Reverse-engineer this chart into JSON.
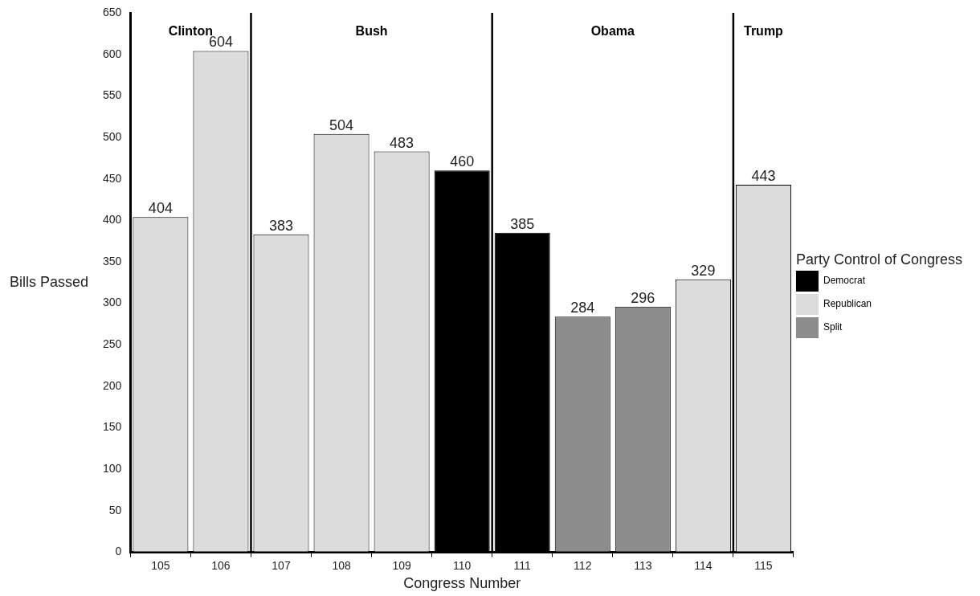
{
  "chart_data": {
    "type": "bar",
    "xlabel": "Congress Number",
    "ylabel": "Bills Passed",
    "legend_title": "Party Control of Congress",
    "x": [
      105,
      106,
      107,
      108,
      109,
      110,
      111,
      112,
      113,
      114,
      115
    ],
    "xlim": [
      104.5,
      115.5
    ],
    "xticks": [
      105,
      106,
      107,
      108,
      109,
      110,
      111,
      112,
      113,
      114,
      115
    ],
    "series": [
      {
        "name": "Democrat",
        "color": "#000000",
        "values": [
          null,
          null,
          null,
          null,
          null,
          460,
          385,
          null,
          null,
          null,
          null
        ]
      },
      {
        "name": "Republican",
        "color": "#dcdcdc",
        "values": [
          404,
          604,
          383,
          504,
          483,
          null,
          null,
          null,
          null,
          329,
          443
        ]
      },
      {
        "name": "Split",
        "color": "#8c8c8c",
        "values": [
          null,
          null,
          null,
          null,
          null,
          null,
          null,
          284,
          296,
          null,
          null
        ]
      }
    ],
    "ylim": [
      0,
      650
    ],
    "yticks": [
      0,
      50,
      100,
      150,
      200,
      250,
      300,
      350,
      400,
      450,
      500,
      550,
      600,
      650
    ],
    "ref_lines": [
      {
        "axis": "x",
        "value": 106.5
      },
      {
        "axis": "x",
        "value": 110.5
      },
      {
        "axis": "x",
        "value": 114.5
      }
    ],
    "annotations": [
      "Clinton",
      "Bush",
      "Obama",
      "Trump"
    ],
    "data_labels": true,
    "grid": false,
    "legend": "right"
  }
}
